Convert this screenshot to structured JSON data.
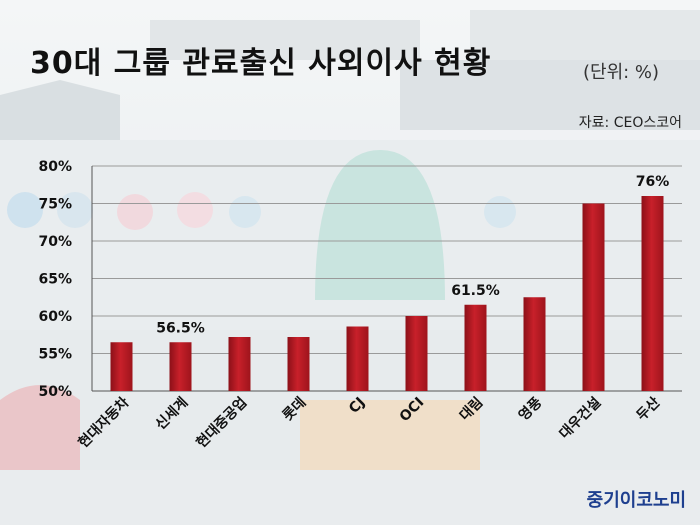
{
  "title": "30대 그룹 관료출신 사외이사 현황",
  "unit": "(단위: %)",
  "source": "자료: CEO스코어",
  "brand": "중기이코노미",
  "chart_data": {
    "type": "bar",
    "title": "30대 그룹 관료출신 사외이사 현황",
    "categories": [
      "현대자동차",
      "신세계",
      "현대중공업",
      "롯데",
      "CJ",
      "OCI",
      "대림",
      "영풍",
      "대우건설",
      "두산"
    ],
    "values": [
      56.5,
      56.5,
      57.2,
      57.2,
      58.6,
      60.0,
      61.5,
      62.5,
      75.0,
      76.0
    ],
    "data_labels": [
      {
        "category": "신세계",
        "text": "56.5%"
      },
      {
        "category": "대림",
        "text": "61.5%"
      },
      {
        "category": "두산",
        "text": "76%"
      }
    ],
    "ylim": [
      50,
      80
    ],
    "yticks": [
      "50%",
      "55%",
      "60%",
      "65%",
      "70%",
      "75%",
      "80%"
    ],
    "ytick_values": [
      50,
      55,
      60,
      65,
      70,
      75,
      80
    ],
    "xlabel": "",
    "ylabel": "",
    "grid": true,
    "bar_color": "#c8202a"
  }
}
